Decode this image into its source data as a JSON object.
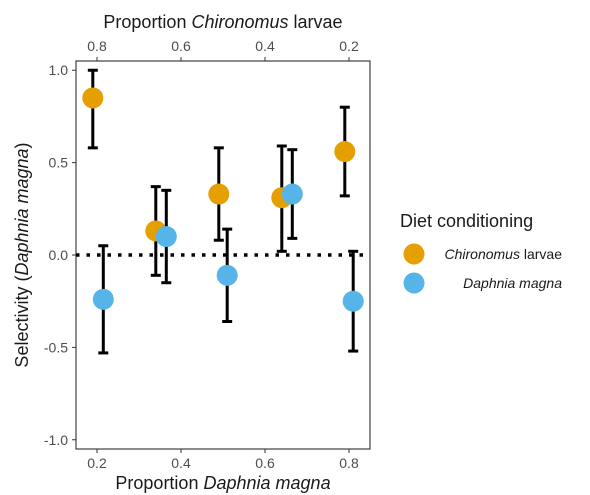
{
  "chart_data": {
    "type": "scatter",
    "xlabel_prefix": "Proportion",
    "xlabel_species": "Daphnia magna",
    "x2label_prefix": "Proportion",
    "x2label_species": "Chironomus",
    "x2label_suffix": "larvae",
    "ylabel_prefix": "Selectivity (",
    "ylabel_species": "Daphnia magna",
    "ylabel_suffix": ")",
    "xlim": [
      0.15,
      0.85
    ],
    "ylim": [
      -1.05,
      1.05
    ],
    "x_ticks": [
      0.2,
      0.4,
      0.6,
      0.8
    ],
    "x_tick_labels": [
      "0.2",
      "0.4",
      "0.6",
      "0.8"
    ],
    "x2_ticks": [
      0.2,
      0.4,
      0.6,
      0.8
    ],
    "x2_tick_labels": [
      "0.8",
      "0.6",
      "0.4",
      "0.2"
    ],
    "y_ticks": [
      -1.0,
      -0.5,
      0.0,
      0.5,
      1.0
    ],
    "y_tick_labels": [
      "-1.0",
      "-0.5",
      "0.0",
      "0.5",
      "1.0"
    ],
    "reference_line": 0.0,
    "grid": false,
    "legend": {
      "title": "Diet conditioning",
      "position": "right"
    },
    "series": [
      {
        "name_species": "Chironomus",
        "name_suffix": "larvae",
        "color": "#E69F00",
        "points": [
          {
            "x": 0.19,
            "y": 0.85,
            "lo": 0.58,
            "hi": 1.0
          },
          {
            "x": 0.34,
            "y": 0.13,
            "lo": -0.11,
            "hi": 0.37
          },
          {
            "x": 0.49,
            "y": 0.33,
            "lo": 0.08,
            "hi": 0.58
          },
          {
            "x": 0.64,
            "y": 0.31,
            "lo": 0.02,
            "hi": 0.59
          },
          {
            "x": 0.79,
            "y": 0.56,
            "lo": 0.32,
            "hi": 0.8
          }
        ]
      },
      {
        "name_species": "Daphnia magna",
        "name_suffix": "",
        "color": "#56B4E9",
        "points": [
          {
            "x": 0.215,
            "y": -0.24,
            "lo": -0.53,
            "hi": 0.05
          },
          {
            "x": 0.365,
            "y": 0.1,
            "lo": -0.15,
            "hi": 0.35
          },
          {
            "x": 0.51,
            "y": -0.11,
            "lo": -0.36,
            "hi": 0.14
          },
          {
            "x": 0.665,
            "y": 0.33,
            "lo": 0.09,
            "hi": 0.57
          },
          {
            "x": 0.81,
            "y": -0.25,
            "lo": -0.52,
            "hi": 0.02
          }
        ]
      }
    ]
  }
}
